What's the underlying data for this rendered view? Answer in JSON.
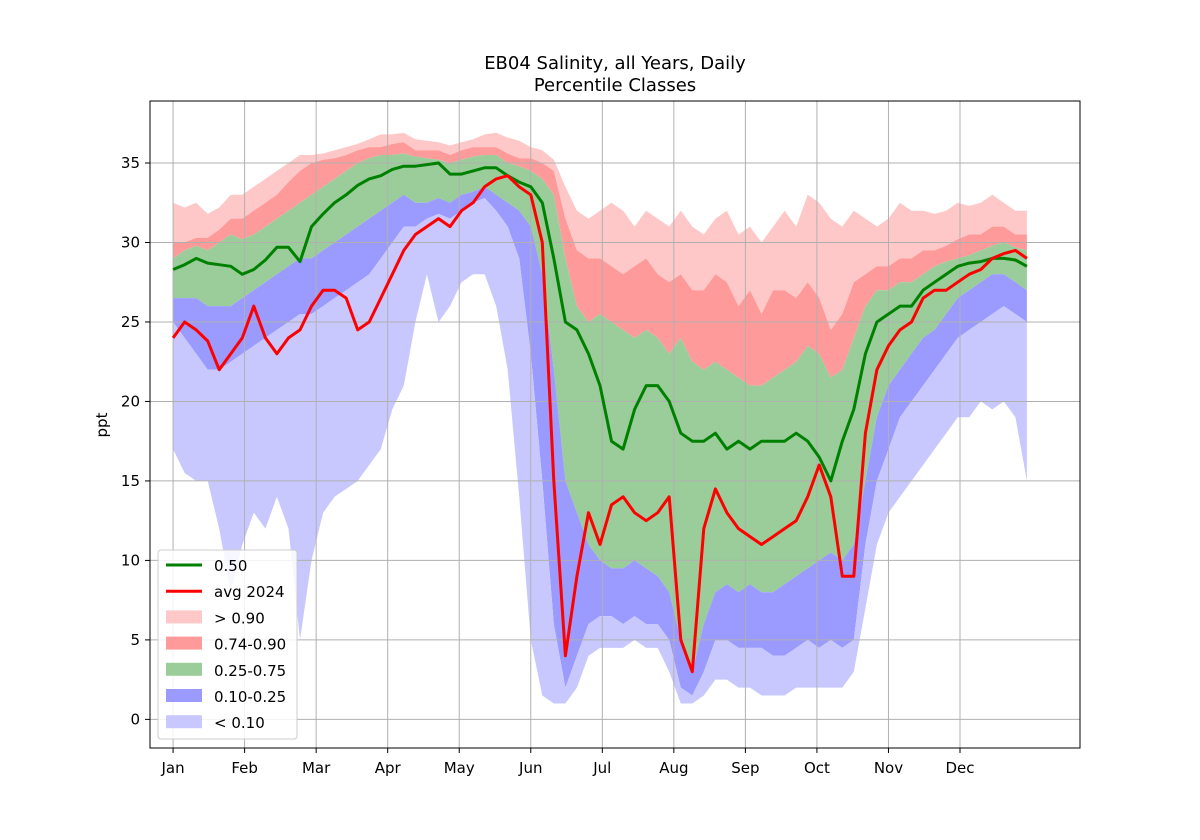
{
  "chart_data": {
    "type": "area",
    "title": "EB04 Salinity, all Years, Daily",
    "subtitle": "Percentile Classes",
    "xlabel": "",
    "ylabel": "ppt",
    "ylim": [
      -1.8,
      38.9
    ],
    "xlim": [
      -10,
      393
    ],
    "grid": true,
    "legend_position": "lower-left",
    "x_ticks": [
      {
        "day": 0,
        "label": "Jan"
      },
      {
        "day": 31,
        "label": "Feb"
      },
      {
        "day": 62,
        "label": "Mar"
      },
      {
        "day": 93,
        "label": "Apr"
      },
      {
        "day": 124,
        "label": "May"
      },
      {
        "day": 155,
        "label": "Jun"
      },
      {
        "day": 186,
        "label": "Jul"
      },
      {
        "day": 217,
        "label": "Aug"
      },
      {
        "day": 248,
        "label": "Sep"
      },
      {
        "day": 279,
        "label": "Oct"
      },
      {
        "day": 310,
        "label": "Nov"
      },
      {
        "day": 341,
        "label": "Dec"
      }
    ],
    "y_ticks": [
      0,
      5,
      10,
      15,
      20,
      25,
      30,
      35
    ],
    "x_days": [
      0,
      5,
      10,
      15,
      20,
      25,
      30,
      35,
      40,
      45,
      50,
      55,
      60,
      65,
      70,
      75,
      80,
      85,
      90,
      95,
      100,
      105,
      110,
      115,
      120,
      125,
      130,
      135,
      140,
      145,
      150,
      155,
      160,
      165,
      170,
      175,
      180,
      185,
      190,
      195,
      200,
      205,
      210,
      215,
      220,
      225,
      230,
      235,
      240,
      245,
      250,
      255,
      260,
      265,
      270,
      275,
      280,
      285,
      290,
      295,
      300,
      305,
      310,
      315,
      320,
      325,
      330,
      335,
      340,
      345,
      350,
      355,
      360,
      365,
      370
    ],
    "bands": [
      {
        "label": "> 0.90",
        "color": "#ffc8c8",
        "lower": "p90",
        "upper": "max"
      },
      {
        "label": "0.74-0.90",
        "color": "#ff9a9a",
        "lower": "p75",
        "upper": "p90"
      },
      {
        "label": "0.25-0.75",
        "color": "#9acd9a",
        "lower": "p25",
        "upper": "p75"
      },
      {
        "label": "0.10-0.25",
        "color": "#9a9aff",
        "lower": "p10",
        "upper": "p25"
      },
      {
        "label": "< 0.10",
        "color": "#c8c8ff",
        "lower": "min",
        "upper": "p10"
      }
    ],
    "percentiles": {
      "max": [
        32.5,
        32.2,
        32.5,
        31.8,
        32.2,
        33.0,
        33.0,
        33.5,
        34.0,
        34.5,
        35.0,
        35.5,
        35.5,
        35.6,
        35.8,
        36.0,
        36.2,
        36.5,
        36.8,
        36.8,
        36.9,
        36.5,
        36.4,
        36.3,
        36.1,
        36.3,
        36.5,
        36.8,
        36.9,
        36.6,
        36.4,
        36.0,
        35.8,
        35.2,
        33.5,
        32.0,
        31.5,
        32.0,
        32.5,
        32.0,
        31.0,
        32.0,
        31.5,
        31.0,
        32.0,
        31.0,
        30.5,
        31.5,
        32.0,
        30.5,
        31.0,
        30.0,
        31.0,
        32.0,
        31.0,
        33.0,
        32.5,
        31.5,
        31.0,
        32.0,
        31.5,
        31.0,
        31.5,
        32.5,
        32.0,
        32.0,
        31.8,
        32.0,
        32.5,
        32.3,
        32.5,
        33.0,
        32.5,
        32.0,
        32.0
      ],
      "p90": [
        30.0,
        30.0,
        30.3,
        30.3,
        30.8,
        31.5,
        31.5,
        32.0,
        32.5,
        33.0,
        33.8,
        34.5,
        35.0,
        35.2,
        35.3,
        35.5,
        35.8,
        36.0,
        36.0,
        36.2,
        36.3,
        35.8,
        35.8,
        35.8,
        35.5,
        35.8,
        36.0,
        36.0,
        36.0,
        35.6,
        35.3,
        35.3,
        35.0,
        34.5,
        31.5,
        29.5,
        29.0,
        29.0,
        28.5,
        28.0,
        28.5,
        29.0,
        28.0,
        27.5,
        28.0,
        27.0,
        27.0,
        28.0,
        27.5,
        26.0,
        27.0,
        25.5,
        27.0,
        27.0,
        26.5,
        27.5,
        26.5,
        24.5,
        25.5,
        27.5,
        28.0,
        28.5,
        28.5,
        29.0,
        29.0,
        29.5,
        29.5,
        29.8,
        30.2,
        30.5,
        30.5,
        31.0,
        31.0,
        30.5,
        30.5
      ],
      "p75": [
        29.0,
        29.5,
        29.8,
        29.5,
        30.0,
        30.5,
        30.2,
        30.5,
        31.0,
        31.5,
        32.0,
        32.5,
        33.0,
        33.5,
        34.0,
        34.5,
        35.0,
        35.3,
        35.5,
        35.5,
        35.6,
        35.4,
        35.3,
        35.2,
        35.0,
        35.2,
        35.4,
        35.5,
        35.5,
        35.0,
        34.8,
        34.5,
        34.0,
        33.0,
        29.0,
        26.0,
        25.0,
        25.5,
        25.0,
        24.5,
        24.0,
        24.5,
        24.0,
        23.0,
        24.0,
        22.5,
        22.0,
        22.5,
        22.0,
        21.5,
        21.0,
        21.0,
        21.5,
        22.0,
        22.5,
        23.5,
        23.0,
        21.5,
        22.0,
        24.0,
        26.0,
        27.0,
        27.0,
        27.5,
        27.5,
        28.0,
        28.5,
        28.8,
        29.0,
        29.2,
        29.5,
        29.8,
        30.0,
        29.7,
        29.5
      ],
      "p25": [
        26.5,
        26.5,
        26.5,
        26.0,
        26.0,
        26.0,
        26.5,
        27.0,
        27.5,
        28.0,
        28.5,
        29.0,
        29.0,
        29.5,
        30.0,
        30.5,
        31.0,
        31.5,
        32.0,
        32.5,
        33.0,
        32.5,
        32.5,
        32.8,
        32.5,
        33.0,
        33.2,
        33.5,
        33.0,
        32.5,
        32.0,
        31.0,
        28.0,
        22.0,
        15.0,
        13.0,
        11.0,
        10.0,
        9.5,
        9.5,
        10.0,
        9.5,
        9.0,
        8.0,
        5.0,
        3.0,
        6.0,
        8.0,
        8.5,
        8.0,
        8.5,
        8.0,
        8.0,
        8.5,
        9.0,
        9.5,
        10.0,
        10.5,
        10.0,
        11.0,
        15.0,
        19.0,
        21.0,
        22.0,
        23.0,
        24.0,
        24.5,
        25.5,
        26.5,
        27.0,
        27.5,
        28.0,
        28.0,
        27.5,
        27.0
      ],
      "p10": [
        25.0,
        24.0,
        23.0,
        22.0,
        22.0,
        22.5,
        23.0,
        23.5,
        24.0,
        24.5,
        25.0,
        25.5,
        25.5,
        26.0,
        26.5,
        27.0,
        27.5,
        28.0,
        29.0,
        30.0,
        31.0,
        31.0,
        31.5,
        31.8,
        31.5,
        32.0,
        32.5,
        32.8,
        32.0,
        31.0,
        29.0,
        23.0,
        15.0,
        6.0,
        2.0,
        4.0,
        6.0,
        6.5,
        6.5,
        6.0,
        6.5,
        6.0,
        6.0,
        5.0,
        2.0,
        1.5,
        3.0,
        5.0,
        5.0,
        4.5,
        4.5,
        4.5,
        4.0,
        4.0,
        4.5,
        5.0,
        4.5,
        5.0,
        4.5,
        5.0,
        11.0,
        15.0,
        17.0,
        19.0,
        20.0,
        21.0,
        22.0,
        23.0,
        24.0,
        24.5,
        25.0,
        25.5,
        26.0,
        25.5,
        25.0
      ],
      "min": [
        17.0,
        15.5,
        15.0,
        15.0,
        12.0,
        8.0,
        11.0,
        13.0,
        12.0,
        14.0,
        12.0,
        5.0,
        10.0,
        13.0,
        14.0,
        14.5,
        15.0,
        16.0,
        17.0,
        19.5,
        21.0,
        25.0,
        28.0,
        25.0,
        26.0,
        27.5,
        28.0,
        28.0,
        26.0,
        22.0,
        14.0,
        5.0,
        1.5,
        1.0,
        1.0,
        2.0,
        4.0,
        4.5,
        4.5,
        4.5,
        5.0,
        4.5,
        4.5,
        3.0,
        1.0,
        1.0,
        1.5,
        2.5,
        2.5,
        2.0,
        2.0,
        1.5,
        1.5,
        1.5,
        2.0,
        2.0,
        2.0,
        2.0,
        2.0,
        3.0,
        7.0,
        11.0,
        13.0,
        14.0,
        15.0,
        16.0,
        17.0,
        18.0,
        19.0,
        19.0,
        20.0,
        19.5,
        20.0,
        19.0,
        15.0
      ]
    },
    "series": [
      {
        "name": "0.50",
        "color": "#008000",
        "values": [
          28.3,
          28.6,
          29.0,
          28.7,
          28.6,
          28.5,
          28.0,
          28.3,
          28.9,
          29.7,
          29.7,
          28.8,
          31.0,
          31.8,
          32.5,
          33.0,
          33.6,
          34.0,
          34.2,
          34.6,
          34.8,
          34.8,
          34.9,
          35.0,
          34.3,
          34.3,
          34.5,
          34.7,
          34.7,
          34.2,
          33.8,
          33.5,
          32.5,
          29.0,
          25.0,
          24.5,
          23.0,
          21.0,
          17.5,
          17.0,
          19.5,
          21.0,
          21.0,
          20.0,
          18.0,
          17.5,
          17.5,
          18.0,
          17.0,
          17.5,
          17.0,
          17.5,
          17.5,
          17.5,
          18.0,
          17.5,
          16.5,
          15.0,
          17.5,
          19.5,
          23.0,
          25.0,
          25.5,
          26.0,
          26.0,
          27.0,
          27.5,
          28.0,
          28.5,
          28.7,
          28.8,
          29.0,
          29.0,
          28.9,
          28.5
        ]
      },
      {
        "name": "avg 2024",
        "color": "#ff0000",
        "values": [
          24.0,
          25.0,
          24.5,
          23.8,
          22.0,
          23.0,
          24.0,
          26.0,
          24.0,
          23.0,
          24.0,
          24.5,
          26.0,
          27.0,
          27.0,
          26.5,
          24.5,
          25.0,
          26.5,
          28.0,
          29.5,
          30.5,
          31.0,
          31.5,
          31.0,
          32.0,
          32.5,
          33.5,
          34.0,
          34.2,
          33.5,
          33.0,
          30.0,
          15.0,
          4.0,
          9.0,
          13.0,
          11.0,
          13.5,
          14.0,
          13.0,
          12.5,
          13.0,
          14.0,
          5.0,
          3.0,
          12.0,
          14.5,
          13.0,
          12.0,
          11.5,
          11.0,
          11.5,
          12.0,
          12.5,
          14.0,
          16.0,
          14.0,
          9.0,
          9.0,
          18.0,
          22.0,
          23.5,
          24.5,
          25.0,
          26.5,
          27.0,
          27.0,
          27.5,
          28.0,
          28.3,
          29.0,
          29.3,
          29.5,
          29.0
        ]
      }
    ]
  },
  "legend": {
    "items": [
      {
        "label": "0.50",
        "color": "#008000",
        "kind": "line"
      },
      {
        "label": "avg 2024",
        "color": "#ff0000",
        "kind": "line"
      },
      {
        "label": "> 0.90",
        "color": "#ffc8c8",
        "kind": "patch"
      },
      {
        "label": "0.74-0.90",
        "color": "#ff9a9a",
        "kind": "patch"
      },
      {
        "label": "0.25-0.75",
        "color": "#9acd9a",
        "kind": "patch"
      },
      {
        "label": "0.10-0.25",
        "color": "#9a9aff",
        "kind": "patch"
      },
      {
        "label": "< 0.10",
        "color": "#c8c8ff",
        "kind": "patch"
      }
    ]
  }
}
